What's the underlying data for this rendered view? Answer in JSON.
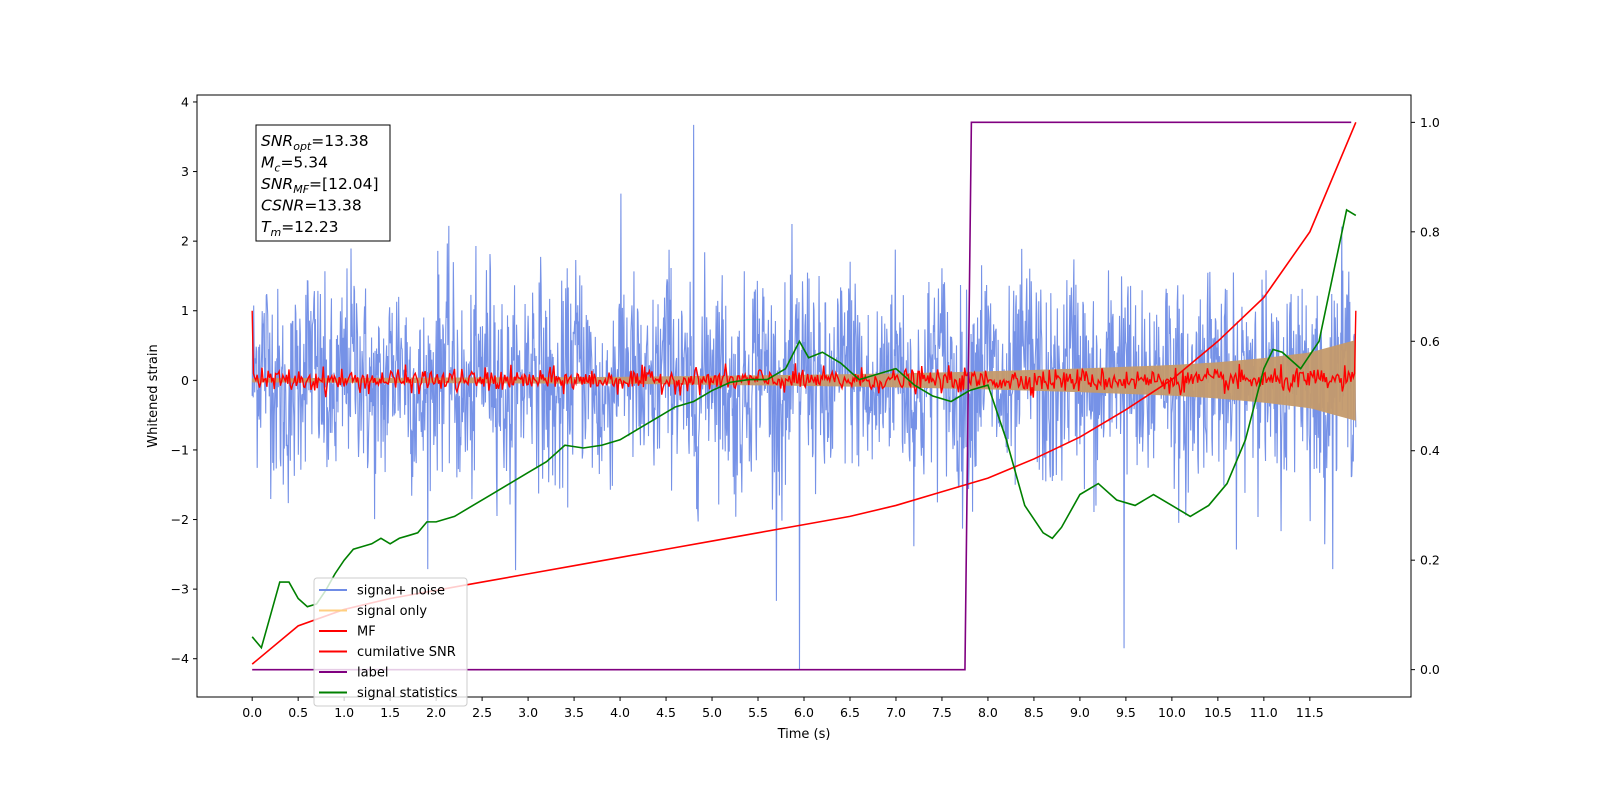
{
  "chart_data": {
    "type": "line",
    "xlabel": "Time (s)",
    "ylabel": "Whitened strain",
    "ylabel_right": "",
    "xlim": [
      -0.6,
      12.6
    ],
    "ylim": [
      -4.55,
      4.1
    ],
    "ylim_right": [
      -0.05,
      1.05
    ],
    "x_ticks": [
      "0.0",
      "0.5",
      "1.0",
      "1.5",
      "2.0",
      "2.5",
      "3.0",
      "3.5",
      "4.0",
      "4.5",
      "5.0",
      "5.5",
      "6.0",
      "6.5",
      "7.0",
      "7.5",
      "8.0",
      "8.5",
      "9.0",
      "9.5",
      "10.0",
      "10.5",
      "11.0",
      "11.5"
    ],
    "y_ticks": [
      "4",
      "3",
      "2",
      "1",
      "0",
      "−1",
      "−2",
      "−3",
      "−4"
    ],
    "y_ticks_right": [
      "1.0",
      "0.8",
      "0.6",
      "0.4",
      "0.2",
      "0.0"
    ],
    "stats_box": [
      {
        "var": "SNR",
        "sub": "opt",
        "value": "=13.38"
      },
      {
        "var": "M",
        "sub": "c",
        "value": "=5.34"
      },
      {
        "var": "SNR",
        "sub": "MF",
        "value": "=[12.04]"
      },
      {
        "var": "CSNR",
        "sub": "",
        "value": "=13.38"
      },
      {
        "var": "T",
        "sub": "m",
        "value": "=12.23"
      }
    ],
    "legend": {
      "location": "lower-left",
      "entries": [
        {
          "label": "signal+ noise",
          "color": "#6f8ce6"
        },
        {
          "label": "signal only",
          "color": "#ffcf80"
        },
        {
          "label": "MF",
          "color": "#ff0000"
        },
        {
          "label": "cumilative SNR",
          "color": "#ff0000"
        },
        {
          "label": "label",
          "color": "#800080"
        },
        {
          "label": "signal statistics",
          "color": "#008000"
        }
      ]
    },
    "series": [
      {
        "name": "signal+ noise",
        "axis": "left",
        "color": "#6f8ce6",
        "x_range": [
          0.0,
          12.0
        ],
        "typical_range": [
          -2.5,
          3.6
        ],
        "mean": 0.0,
        "max": 3.67,
        "min": -4.15
      },
      {
        "name": "signal only",
        "axis": "left",
        "color": "#ffcf80",
        "x": [
          0.0,
          2.0,
          4.0,
          6.0,
          7.0,
          8.0,
          9.0,
          10.0,
          10.5,
          11.0,
          11.5,
          12.0
        ],
        "amplitude": [
          0.03,
          0.04,
          0.05,
          0.08,
          0.1,
          0.13,
          0.17,
          0.22,
          0.26,
          0.32,
          0.4,
          0.58
        ]
      },
      {
        "name": "MF",
        "axis": "left",
        "color": "#ff0000",
        "x_range": [
          0.0,
          12.0
        ],
        "level": 0.0,
        "ripple": 0.15,
        "edge_value": 1.0
      },
      {
        "name": "cumilative SNR",
        "axis": "right",
        "color": "#ff0000",
        "x": [
          0.0,
          0.5,
          1.0,
          1.5,
          2.0,
          2.5,
          3.0,
          3.5,
          4.0,
          4.5,
          5.0,
          5.5,
          6.0,
          6.5,
          7.0,
          7.5,
          8.0,
          8.5,
          9.0,
          9.5,
          10.0,
          10.5,
          11.0,
          11.5,
          12.0
        ],
        "values": [
          0.01,
          0.08,
          0.11,
          0.13,
          0.145,
          0.16,
          0.175,
          0.19,
          0.205,
          0.22,
          0.235,
          0.25,
          0.265,
          0.28,
          0.3,
          0.325,
          0.35,
          0.385,
          0.425,
          0.475,
          0.53,
          0.6,
          0.68,
          0.8,
          1.0
        ]
      },
      {
        "name": "label",
        "axis": "right",
        "color": "#800080",
        "x": [
          0.0,
          7.75,
          7.82,
          11.95
        ],
        "values": [
          0.0,
          0.0,
          1.0,
          1.0
        ]
      },
      {
        "name": "signal statistics",
        "axis": "right",
        "color": "#008000",
        "x": [
          0.0,
          0.1,
          0.2,
          0.3,
          0.4,
          0.5,
          0.6,
          0.7,
          0.8,
          0.9,
          1.0,
          1.1,
          1.2,
          1.3,
          1.4,
          1.5,
          1.6,
          1.7,
          1.8,
          1.9,
          2.0,
          2.2,
          2.4,
          2.6,
          2.8,
          3.0,
          3.2,
          3.4,
          3.6,
          3.8,
          4.0,
          4.2,
          4.4,
          4.6,
          4.8,
          5.0,
          5.2,
          5.4,
          5.6,
          5.8,
          5.95,
          6.05,
          6.2,
          6.4,
          6.6,
          6.8,
          7.0,
          7.2,
          7.4,
          7.6,
          7.8,
          8.0,
          8.2,
          8.4,
          8.6,
          8.7,
          8.8,
          9.0,
          9.2,
          9.4,
          9.6,
          9.8,
          10.0,
          10.2,
          10.4,
          10.6,
          10.8,
          11.0,
          11.1,
          11.2,
          11.4,
          11.6,
          11.8,
          11.9,
          12.0
        ],
        "values": [
          0.06,
          0.04,
          0.1,
          0.16,
          0.16,
          0.13,
          0.115,
          0.12,
          0.145,
          0.175,
          0.2,
          0.22,
          0.225,
          0.23,
          0.24,
          0.23,
          0.24,
          0.245,
          0.25,
          0.27,
          0.27,
          0.28,
          0.3,
          0.32,
          0.34,
          0.36,
          0.38,
          0.41,
          0.405,
          0.41,
          0.42,
          0.44,
          0.46,
          0.48,
          0.49,
          0.51,
          0.525,
          0.53,
          0.53,
          0.55,
          0.6,
          0.57,
          0.58,
          0.56,
          0.53,
          0.54,
          0.55,
          0.52,
          0.5,
          0.49,
          0.51,
          0.52,
          0.42,
          0.3,
          0.25,
          0.24,
          0.26,
          0.32,
          0.34,
          0.31,
          0.3,
          0.32,
          0.3,
          0.28,
          0.3,
          0.34,
          0.42,
          0.55,
          0.585,
          0.58,
          0.55,
          0.6,
          0.76,
          0.84,
          0.83
        ]
      }
    ]
  }
}
